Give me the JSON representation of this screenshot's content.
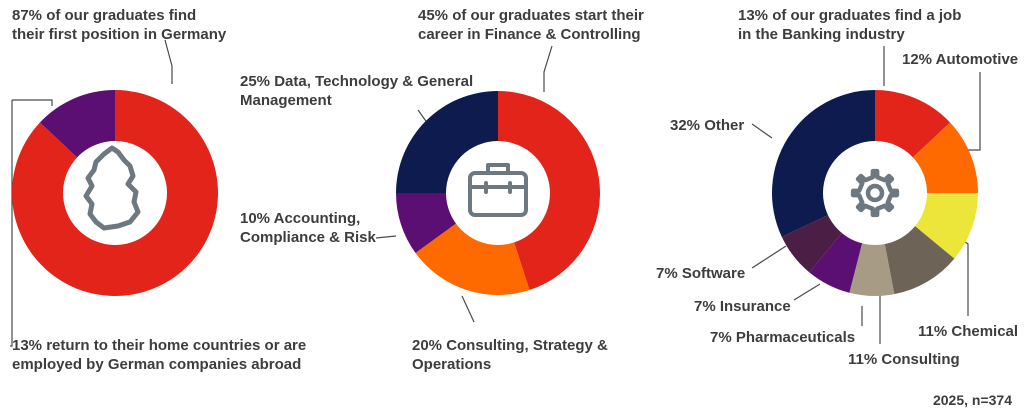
{
  "chart_data": [
    {
      "type": "pie",
      "variant": "donut",
      "icon": "germany-map-icon",
      "slices": [
        {
          "name": "Germany",
          "value": 87,
          "color": "#E3241B",
          "label_lines": [
            "87% of our graduates find",
            "their first position in Germany"
          ]
        },
        {
          "name": "Abroad",
          "value": 13,
          "color": "#5B0F73",
          "label_lines": [
            "13% return to their home countries or are",
            "employed by German companies abroad"
          ]
        }
      ]
    },
    {
      "type": "pie",
      "variant": "donut",
      "icon": "briefcase-icon",
      "slices": [
        {
          "name": "Finance & Controlling",
          "value": 45,
          "color": "#E3241B",
          "label_lines": [
            "45% of our graduates start their",
            "career in Finance & Controlling"
          ]
        },
        {
          "name": "Consulting, Strategy & Operations",
          "value": 20,
          "color": "#FF6A00",
          "label_lines": [
            "20% Consulting, Strategy &",
            "Operations"
          ]
        },
        {
          "name": "Accounting, Compliance & Risk",
          "value": 10,
          "color": "#5B0F73",
          "label_lines": [
            "10% Accounting,",
            "Compliance & Risk"
          ]
        },
        {
          "name": "Data, Technology & General Management",
          "value": 25,
          "color": "#0D1B4F",
          "label_lines": [
            "25% Data, Technology & General",
            "Management"
          ]
        }
      ]
    },
    {
      "type": "pie",
      "variant": "donut",
      "icon": "gear-icon",
      "slices": [
        {
          "name": "Banking",
          "value": 13,
          "color": "#E3241B",
          "label_lines": [
            "13% of our graduates find a job",
            "in the Banking industry"
          ]
        },
        {
          "name": "Automotive",
          "value": 12,
          "color": "#FF6A00",
          "label_lines": [
            "12% Automotive"
          ]
        },
        {
          "name": "Chemical",
          "value": 11,
          "color": "#EDE63A",
          "label_lines": [
            "11% Chemical"
          ]
        },
        {
          "name": "Consulting",
          "value": 11,
          "color": "#6E6357",
          "label_lines": [
            "11% Consulting"
          ]
        },
        {
          "name": "Pharmaceuticals",
          "value": 7,
          "color": "#A79B86",
          "label_lines": [
            "7% Pharmaceuticals"
          ]
        },
        {
          "name": "Insurance",
          "value": 7,
          "color": "#5B0F73",
          "label_lines": [
            "7% Insurance"
          ]
        },
        {
          "name": "Software",
          "value": 7,
          "color": "#4A1E45",
          "label_lines": [
            "7% Software"
          ]
        },
        {
          "name": "Other",
          "value": 32,
          "color": "#0D1B4F",
          "label_lines": [
            "32% Other"
          ]
        }
      ]
    }
  ],
  "footnote": "2025, n=374"
}
